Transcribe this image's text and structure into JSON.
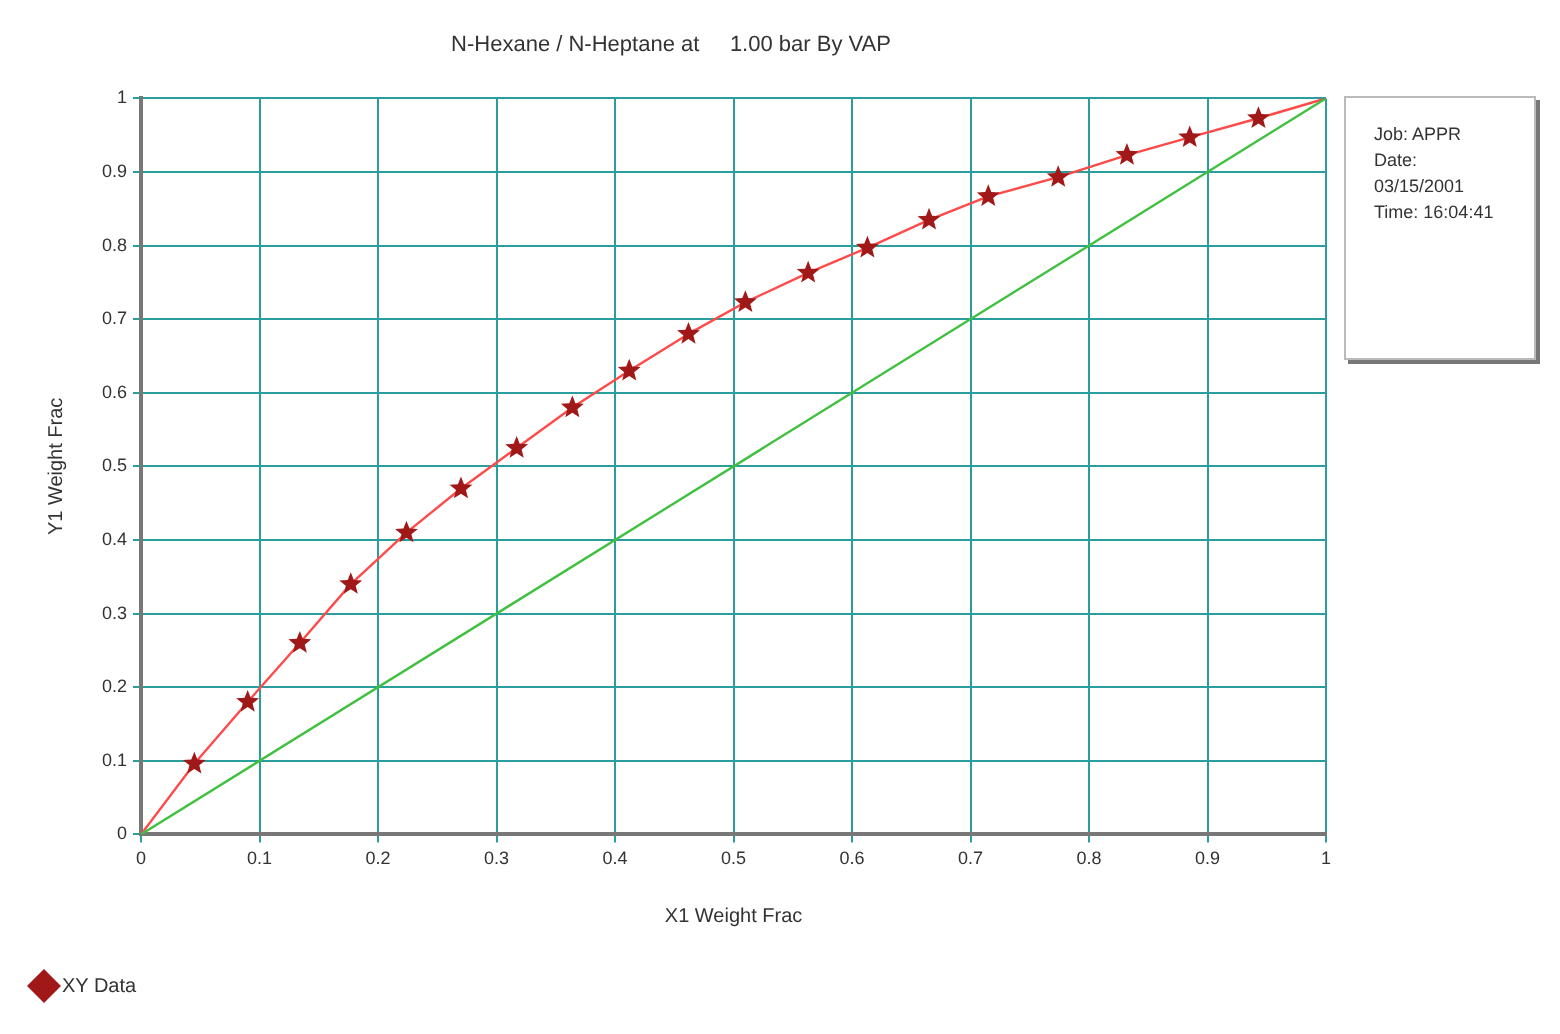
{
  "chart_data": {
    "type": "scatter",
    "title": "N-Hexane / N-Heptane at     1.00 bar By VAP",
    "xlabel": "X1 Weight Frac",
    "ylabel": "Y1 Weight Frac",
    "annotations": [
      "Job:  APPR",
      "Date:",
      "03/15/2001",
      "Time: 16:04:41"
    ],
    "xlim": [
      0,
      1
    ],
    "ylim": [
      0,
      1
    ],
    "xticks": [
      0,
      0.1,
      0.2,
      0.3,
      0.4,
      0.5,
      0.6,
      0.7,
      0.8,
      0.9,
      1
    ],
    "yticks": [
      0,
      0.1,
      0.2,
      0.3,
      0.4,
      0.5,
      0.6,
      0.7,
      0.8,
      0.9,
      1
    ],
    "grid": true,
    "legend": "bottom left",
    "series": [
      {
        "type": "line",
        "color": "#40c040",
        "marker": "none",
        "x": [
          0,
          1
        ],
        "values": [
          0,
          1
        ]
      },
      {
        "type": "line",
        "color": "#ff4a4a",
        "marker": "none",
        "x": [
          0,
          0.045,
          0.09,
          0.134,
          0.177,
          0.224,
          0.27,
          0.317,
          0.364,
          0.412,
          0.462,
          0.51,
          0.563,
          0.613,
          0.665,
          0.715,
          0.774,
          0.832,
          0.885,
          0.943,
          1
        ],
        "values": [
          0,
          0.096,
          0.18,
          0.26,
          0.34,
          0.41,
          0.47,
          0.525,
          0.58,
          0.63,
          0.68,
          0.723,
          0.763,
          0.797,
          0.835,
          0.867,
          0.893,
          0.923,
          0.947,
          0.973,
          1
        ]
      },
      {
        "type": "scatter",
        "name": "XY Data",
        "color": "#a01818",
        "marker": "star",
        "x": [
          0.045,
          0.09,
          0.134,
          0.177,
          0.224,
          0.27,
          0.317,
          0.364,
          0.412,
          0.462,
          0.51,
          0.563,
          0.613,
          0.665,
          0.715,
          0.774,
          0.832,
          0.885,
          0.943
        ],
        "values": [
          0.096,
          0.18,
          0.26,
          0.34,
          0.41,
          0.47,
          0.525,
          0.58,
          0.63,
          0.68,
          0.723,
          0.763,
          0.797,
          0.835,
          0.867,
          0.893,
          0.923,
          0.947,
          0.973
        ]
      }
    ]
  }
}
